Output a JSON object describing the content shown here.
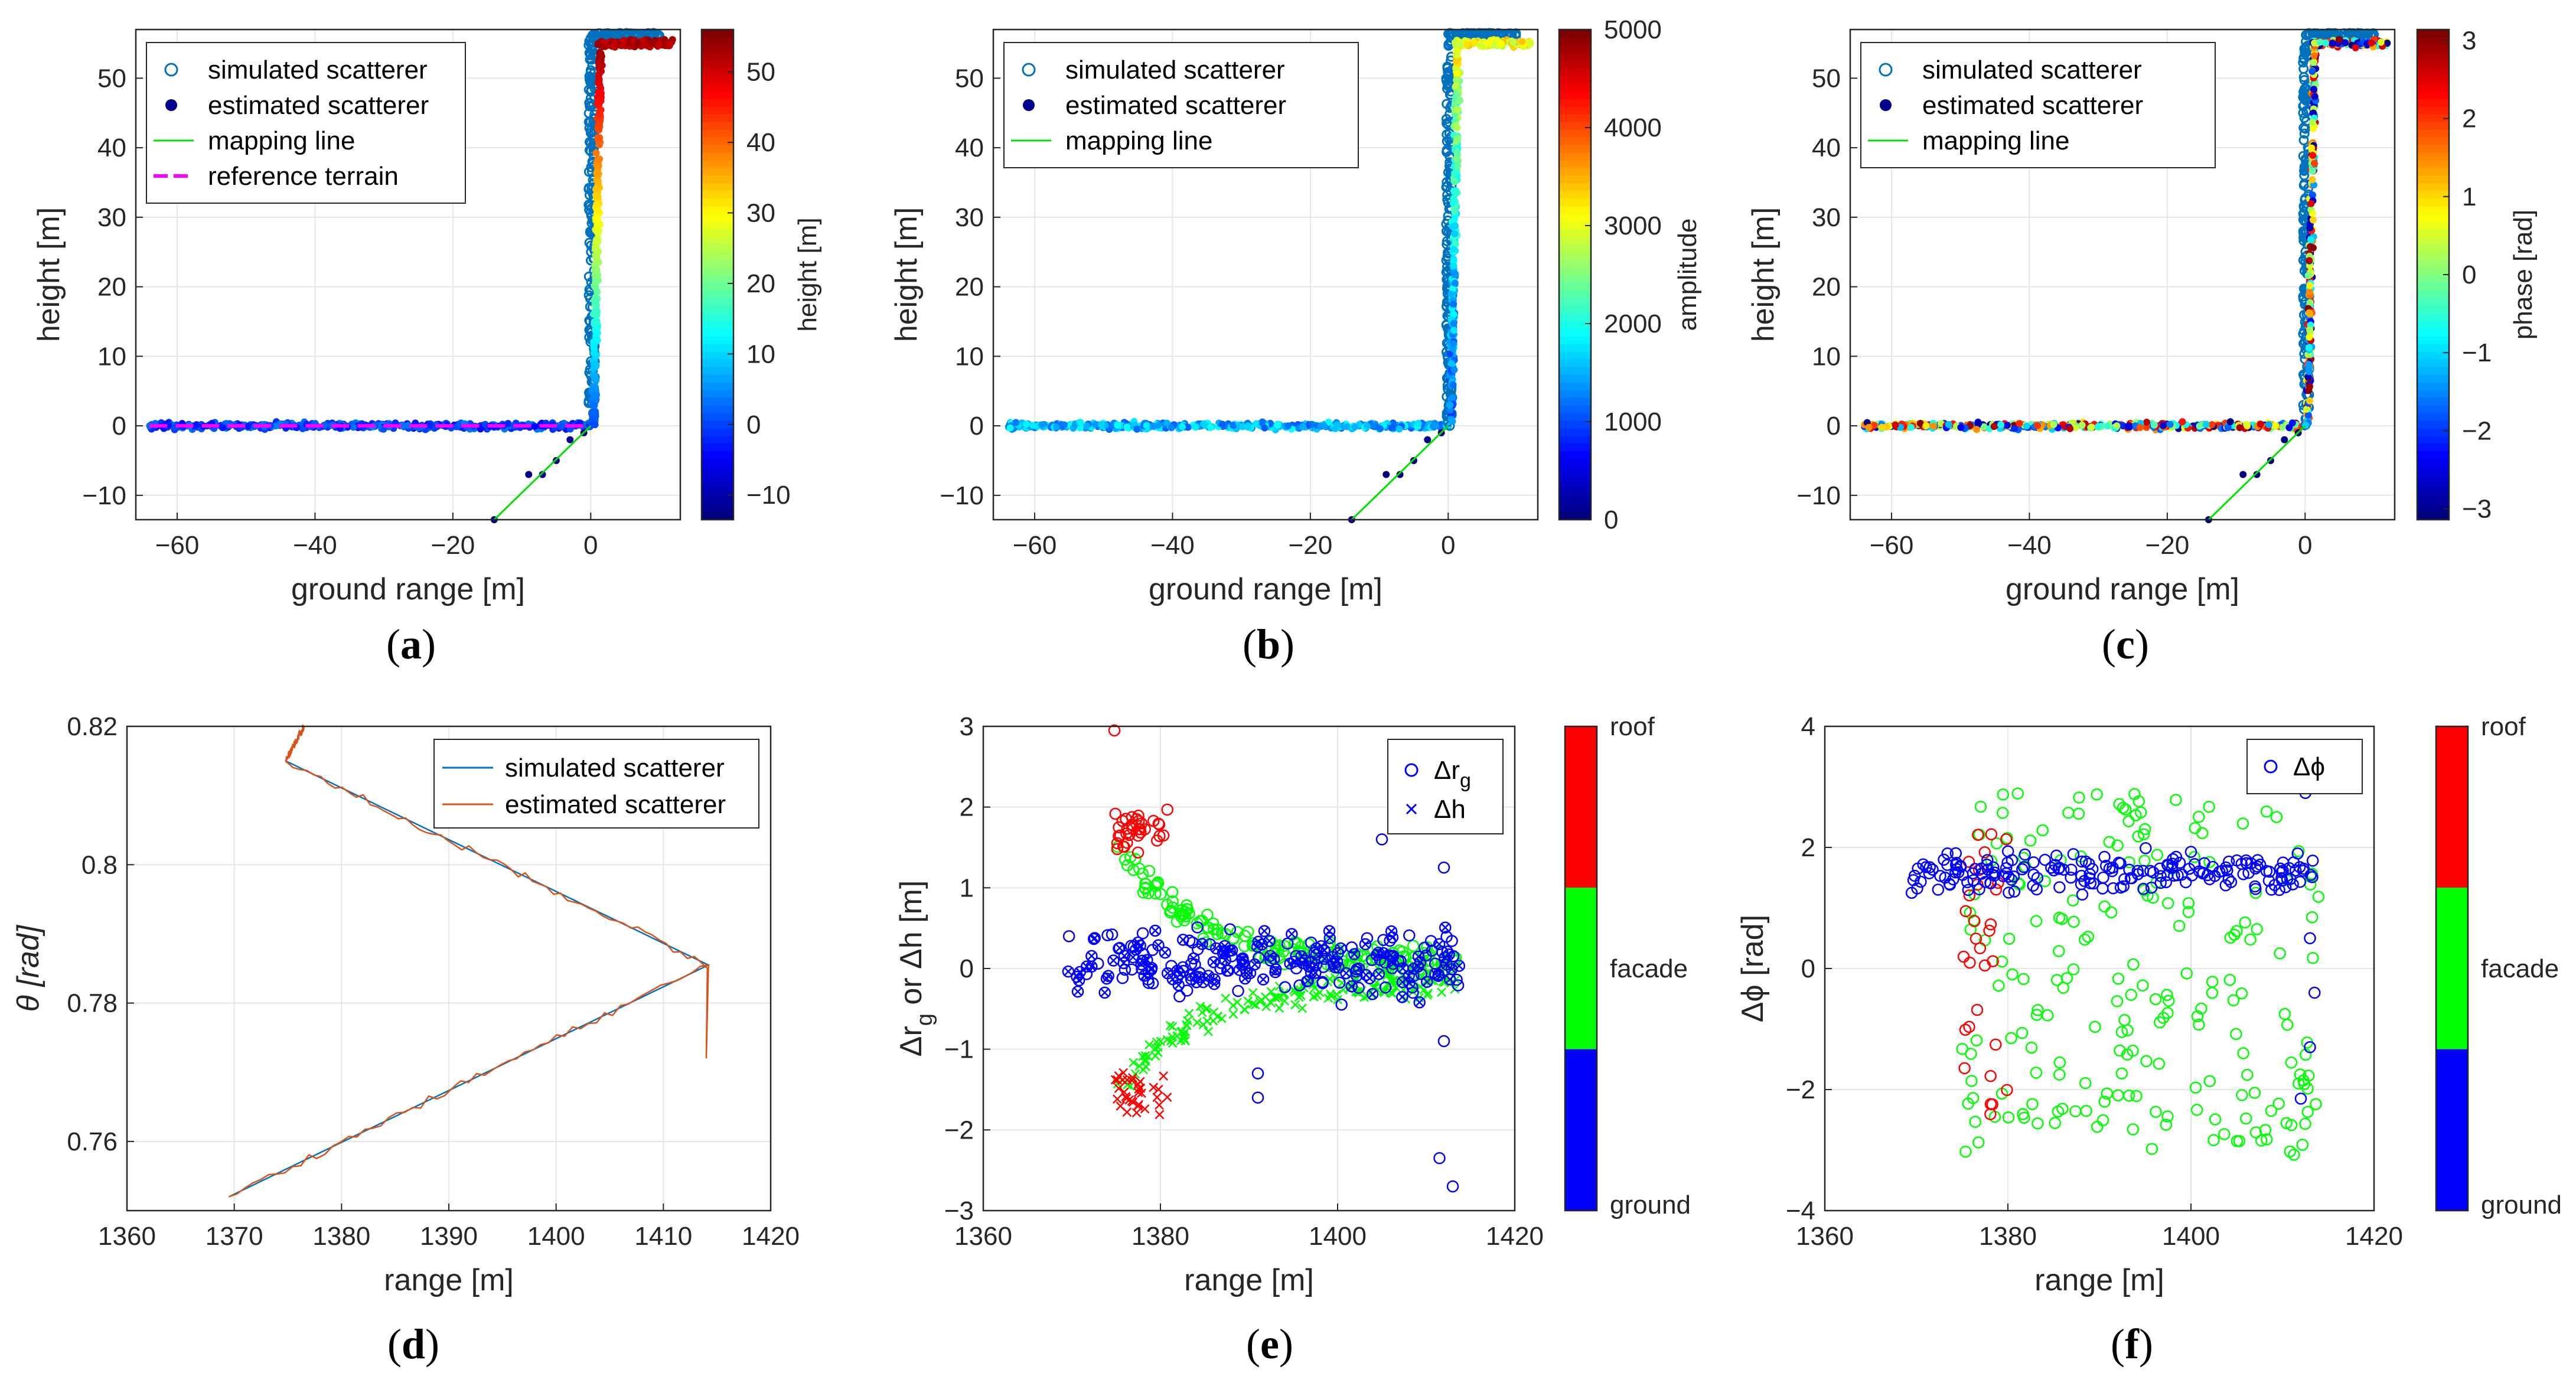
{
  "figure": {
    "captions": [
      "a",
      "b",
      "c",
      "d",
      "e",
      "f"
    ]
  },
  "chart_data": [
    {
      "id": "a",
      "type": "scatter",
      "xlabel": "ground range [m]",
      "ylabel": "height [m]",
      "xlim": [
        -66,
        13
      ],
      "ylim": [
        -13.5,
        57
      ],
      "xticks": [
        -60,
        -40,
        -20,
        0
      ],
      "xtick_labels": [
        "−60",
        "−40",
        "−20",
        "0"
      ],
      "yticks": [
        -10,
        0,
        10,
        20,
        30,
        40,
        50
      ],
      "ytick_labels": [
        "−10",
        "0",
        "10",
        "20",
        "30",
        "40",
        "50"
      ],
      "legend": [
        "simulated scatterer",
        "estimated scatterer",
        "mapping line",
        "reference terrain"
      ],
      "legend_location": "top-left",
      "colorbar": {
        "label": "height [m]",
        "range": [
          -13.5,
          56
        ],
        "ticks": [
          -10,
          0,
          10,
          20,
          30,
          40,
          50
        ],
        "tick_labels": [
          "−10",
          "0",
          "10",
          "20",
          "30",
          "40",
          "50"
        ],
        "colormap": "jet"
      },
      "series": [
        {
          "name": "simulated scatterer",
          "segments": [
            {
              "x": [
                -64,
                0
              ],
              "y": [
                0,
                0
              ]
            },
            {
              "x": [
                0,
                0
              ],
              "y": [
                0,
                56
              ]
            },
            {
              "x": [
                0,
                10
              ],
              "y": [
                56,
                56
              ]
            }
          ]
        },
        {
          "name": "estimated scatterer",
          "segments": [
            {
              "x": [
                -64,
                0
              ],
              "y": [
                0,
                0
              ]
            },
            {
              "x": [
                0,
                0
              ],
              "y": [
                0,
                55
              ]
            },
            {
              "x": [
                1,
                12
              ],
              "y": [
                55,
                55
              ]
            }
          ],
          "outliers_x": [
            -14,
            -9,
            -7,
            -5,
            -3,
            -1
          ],
          "outliers_y": [
            -13.5,
            -7,
            -7,
            -5,
            -2,
            -1
          ]
        },
        {
          "name": "mapping line",
          "x": [
            -14,
            0
          ],
          "y": [
            -13.5,
            0
          ]
        },
        {
          "name": "reference terrain",
          "x": [
            -64,
            0
          ],
          "y": [
            0,
            0
          ]
        }
      ]
    },
    {
      "id": "b",
      "type": "scatter",
      "xlabel": "ground range [m]",
      "ylabel": "height [m]",
      "xlim": [
        -66,
        13
      ],
      "ylim": [
        -13.5,
        57
      ],
      "xticks": [
        -60,
        -40,
        -20,
        0
      ],
      "xtick_labels": [
        "−60",
        "−40",
        "−20",
        "0"
      ],
      "yticks": [
        -10,
        0,
        10,
        20,
        30,
        40,
        50
      ],
      "ytick_labels": [
        "−10",
        "0",
        "10",
        "20",
        "30",
        "40",
        "50"
      ],
      "legend": [
        "simulated scatterer",
        "estimated scatterer",
        "mapping line"
      ],
      "legend_location": "top-left",
      "colorbar": {
        "label": "amplitude",
        "range": [
          0,
          5000
        ],
        "ticks": [
          0,
          1000,
          2000,
          3000,
          4000,
          5000
        ],
        "tick_labels": [
          "0",
          "1000",
          "2000",
          "3000",
          "4000",
          "5000"
        ],
        "colormap": "jet"
      }
    },
    {
      "id": "c",
      "type": "scatter",
      "xlabel": "ground range [m]",
      "ylabel": "height [m]",
      "xlim": [
        -66,
        13
      ],
      "ylim": [
        -13.5,
        57
      ],
      "xticks": [
        -60,
        -40,
        -20,
        0
      ],
      "xtick_labels": [
        "−60",
        "−40",
        "−20",
        "0"
      ],
      "yticks": [
        -10,
        0,
        10,
        20,
        30,
        40,
        50
      ],
      "ytick_labels": [
        "−10",
        "0",
        "10",
        "20",
        "30",
        "40",
        "50"
      ],
      "legend": [
        "simulated scatterer",
        "estimated scatterer",
        "mapping line"
      ],
      "legend_location": "top-left",
      "colorbar": {
        "label": "phase [rad]",
        "range": [
          -3.14,
          3.14
        ],
        "ticks": [
          -3,
          -2,
          -1,
          0,
          1,
          2,
          3
        ],
        "tick_labels": [
          "−3",
          "−2",
          "−1",
          "0",
          "1",
          "2",
          "3"
        ],
        "colormap": "jet"
      }
    },
    {
      "id": "d",
      "type": "line",
      "xlabel": "range [m]",
      "ylabel": "θ [rad]",
      "xlim": [
        1360,
        1420
      ],
      "ylim": [
        0.75,
        0.82
      ],
      "xticks": [
        1360,
        1370,
        1380,
        1390,
        1400,
        1410,
        1420
      ],
      "xtick_labels": [
        "1360",
        "1370",
        "1380",
        "1390",
        "1400",
        "1410",
        "1420"
      ],
      "yticks": [
        0.76,
        0.78,
        0.8,
        0.82
      ],
      "ytick_labels": [
        "0.76",
        "0.78",
        "0.8",
        "0.82"
      ],
      "legend": [
        "simulated scatterer",
        "estimated scatterer"
      ],
      "legend_location": "top-right",
      "series": [
        {
          "name": "simulated scatterer",
          "color": "#0072BD",
          "x": [
            1369.5,
            1414.2,
            1374.8,
            1376.5
          ],
          "y": [
            0.752,
            0.7855,
            0.815,
            0.82
          ]
        },
        {
          "name": "estimated scatterer",
          "color": "#D95319",
          "x": [
            1369.5,
            1414.2,
            1374.8,
            1376.5
          ],
          "y": [
            0.752,
            0.7855,
            0.815,
            0.82
          ]
        }
      ]
    },
    {
      "id": "e",
      "type": "scatter",
      "xlabel": "range [m]",
      "ylabel": "Δr",
      "ylabel_sub": "g",
      "ylabel_tail": " or Δh [m]",
      "xlim": [
        1360,
        1420
      ],
      "ylim": [
        -3,
        3
      ],
      "xticks": [
        1360,
        1380,
        1400,
        1420
      ],
      "xtick_labels": [
        "1360",
        "1380",
        "1400",
        "1420"
      ],
      "yticks": [
        -3,
        -2,
        -1,
        0,
        1,
        2,
        3
      ],
      "ytick_labels": [
        "−3",
        "−2",
        "−1",
        "0",
        "1",
        "2",
        "3"
      ],
      "legend": [
        "Δr",
        "g",
        "Δh"
      ],
      "legend_location": "top-right",
      "colorbar": {
        "labels": [
          "roof",
          "facade",
          "ground"
        ],
        "colors": [
          "#FF0000",
          "#00FF00",
          "#0000FF"
        ]
      },
      "classes": [
        {
          "name": "roof",
          "color": "#FF0000",
          "range_x": [
            1374.5,
            1381
          ]
        },
        {
          "name": "facade",
          "color": "#00FF00",
          "range_x": [
            1374.5,
            1414
          ]
        },
        {
          "name": "ground",
          "color": "#0000FF",
          "range_x": [
            1369,
            1414
          ]
        }
      ]
    },
    {
      "id": "f",
      "type": "scatter",
      "xlabel": "range [m]",
      "ylabel": "Δϕ [rad]",
      "xlim": [
        1360,
        1420
      ],
      "ylim": [
        -4,
        4
      ],
      "xticks": [
        1360,
        1380,
        1400,
        1420
      ],
      "xtick_labels": [
        "1360",
        "1380",
        "1400",
        "1420"
      ],
      "yticks": [
        -4,
        -2,
        0,
        2,
        4
      ],
      "ytick_labels": [
        "−4",
        "−2",
        "0",
        "2",
        "4"
      ],
      "legend": [
        "Δϕ"
      ],
      "legend_location": "top-right",
      "colorbar": {
        "labels": [
          "roof",
          "facade",
          "ground"
        ],
        "colors": [
          "#FF0000",
          "#00FF00",
          "#0000FF"
        ]
      }
    }
  ]
}
